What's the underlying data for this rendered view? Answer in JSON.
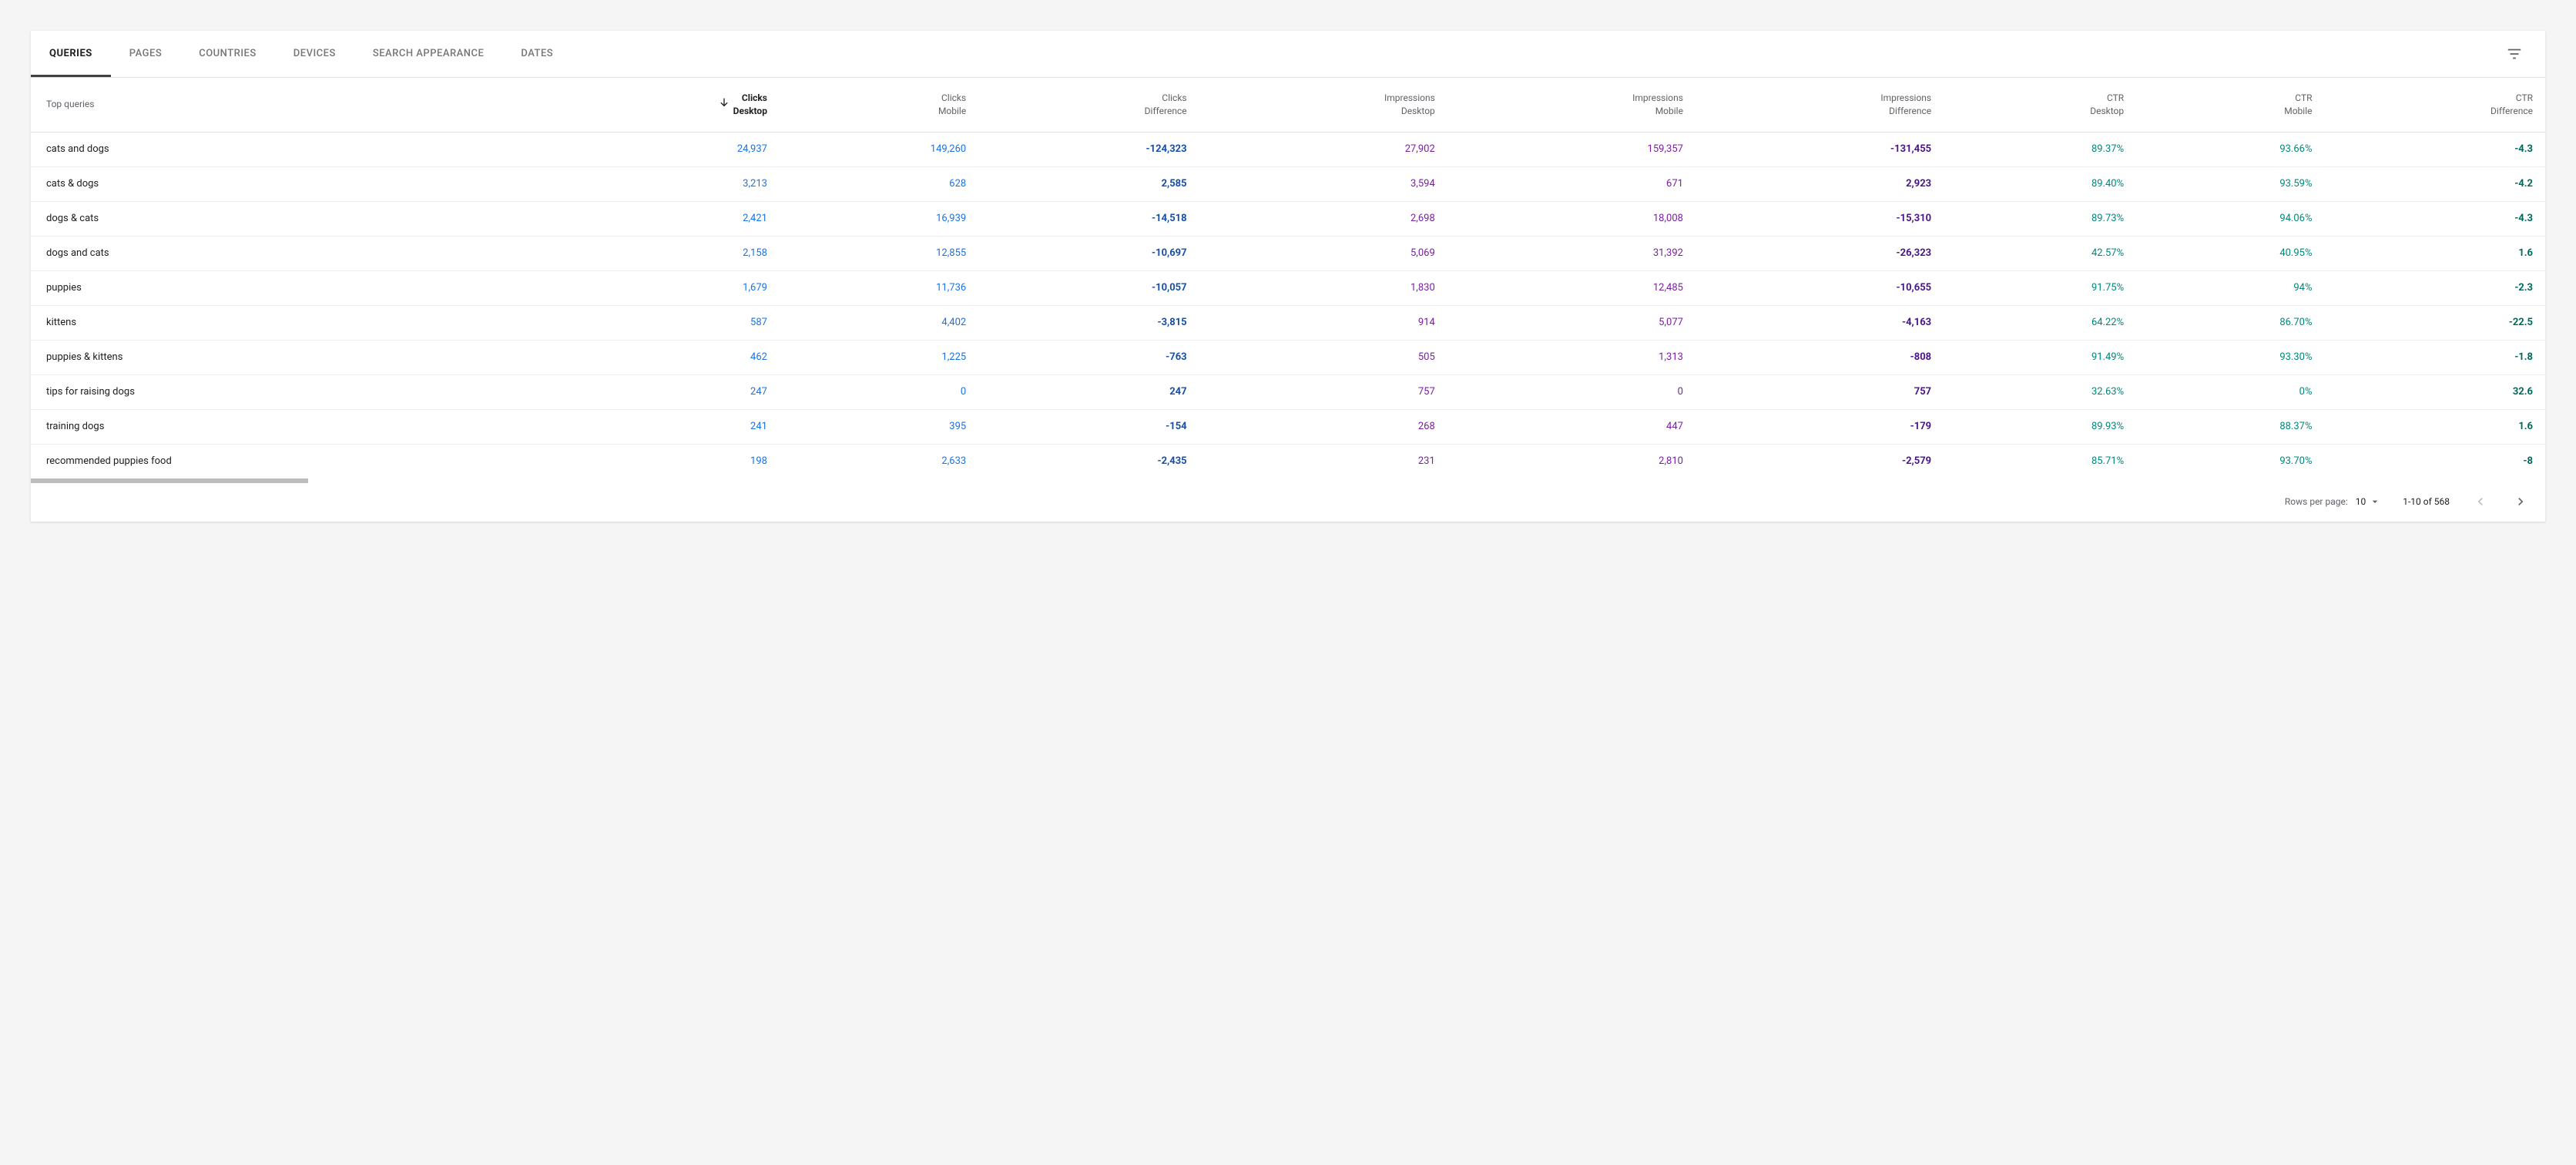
{
  "tabs": [
    {
      "label": "QUERIES",
      "active": true
    },
    {
      "label": "PAGES",
      "active": false
    },
    {
      "label": "COUNTRIES",
      "active": false
    },
    {
      "label": "DEVICES",
      "active": false
    },
    {
      "label": "SEARCH APPEARANCE",
      "active": false
    },
    {
      "label": "DATES",
      "active": false
    }
  ],
  "table": {
    "first_column_header": "Top queries",
    "sorted_column_index": 0,
    "sort_direction": "desc",
    "columns": [
      {
        "line1": "Clicks",
        "line2": "Desktop",
        "color_class": "c-clicks"
      },
      {
        "line1": "Clicks",
        "line2": "Mobile",
        "color_class": "c-clicks"
      },
      {
        "line1": "Clicks",
        "line2": "Difference",
        "color_class": "c-clicks-diff"
      },
      {
        "line1": "Impressions",
        "line2": "Desktop",
        "color_class": "c-impr"
      },
      {
        "line1": "Impressions",
        "line2": "Mobile",
        "color_class": "c-impr"
      },
      {
        "line1": "Impressions",
        "line2": "Difference",
        "color_class": "c-impr-diff"
      },
      {
        "line1": "CTR",
        "line2": "Desktop",
        "color_class": "c-ctr"
      },
      {
        "line1": "CTR",
        "line2": "Mobile",
        "color_class": "c-ctr"
      },
      {
        "line1": "CTR",
        "line2": "Difference",
        "color_class": "c-ctr-diff"
      }
    ],
    "rows": [
      {
        "query": "cats and dogs",
        "cells": [
          "24,937",
          "149,260",
          "-124,323",
          "27,902",
          "159,357",
          "-131,455",
          "89.37%",
          "93.66%",
          "-4.3"
        ]
      },
      {
        "query": "cats & dogs",
        "cells": [
          "3,213",
          "628",
          "2,585",
          "3,594",
          "671",
          "2,923",
          "89.40%",
          "93.59%",
          "-4.2"
        ]
      },
      {
        "query": "dogs & cats",
        "cells": [
          "2,421",
          "16,939",
          "-14,518",
          "2,698",
          "18,008",
          "-15,310",
          "89.73%",
          "94.06%",
          "-4.3"
        ]
      },
      {
        "query": "dogs and cats",
        "cells": [
          "2,158",
          "12,855",
          "-10,697",
          "5,069",
          "31,392",
          "-26,323",
          "42.57%",
          "40.95%",
          "1.6"
        ]
      },
      {
        "query": "puppies",
        "cells": [
          "1,679",
          "11,736",
          "-10,057",
          "1,830",
          "12,485",
          "-10,655",
          "91.75%",
          "94%",
          "-2.3"
        ]
      },
      {
        "query": "kittens",
        "cells": [
          "587",
          "4,402",
          "-3,815",
          "914",
          "5,077",
          "-4,163",
          "64.22%",
          "86.70%",
          "-22.5"
        ]
      },
      {
        "query": "puppies & kittens",
        "cells": [
          "462",
          "1,225",
          "-763",
          "505",
          "1,313",
          "-808",
          "91.49%",
          "93.30%",
          "-1.8"
        ]
      },
      {
        "query": "tips for raising dogs",
        "cells": [
          "247",
          "0",
          "247",
          "757",
          "0",
          "757",
          "32.63%",
          "0%",
          "32.6"
        ]
      },
      {
        "query": "training dogs",
        "cells": [
          "241",
          "395",
          "-154",
          "268",
          "447",
          "-179",
          "89.93%",
          "88.37%",
          "1.6"
        ]
      },
      {
        "query": "recommended puppies food",
        "cells": [
          "198",
          "2,633",
          "-2,435",
          "231",
          "2,810",
          "-2,579",
          "85.71%",
          "93.70%",
          "-8"
        ]
      }
    ]
  },
  "pagination": {
    "rows_per_page_label": "Rows per page:",
    "rows_per_page_value": "10",
    "range_text": "1-10 of 568",
    "prev_enabled": false,
    "next_enabled": true
  },
  "colors": {
    "clicks": "#1a73e8",
    "clicks_diff": "#174ea6",
    "impressions": "#7b1fa2",
    "impressions_diff": "#4a148c",
    "ctr": "#00897b",
    "ctr_diff": "#00695c",
    "text_primary": "#212121",
    "text_secondary": "#5f6368",
    "divider": "#e0e0e0",
    "background": "#f5f5f5",
    "card": "#ffffff"
  }
}
